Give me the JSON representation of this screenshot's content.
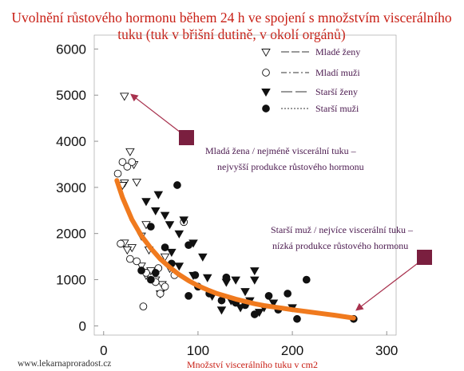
{
  "colors": {
    "title": "#c81e14",
    "xlabel": "#c81e14",
    "annotation": "#4b1a4f",
    "marker_box": "#7a1f3f",
    "arrow": "#a8324e",
    "fit": "#f07a1e",
    "points": "#111111"
  },
  "footer": "www.lekarnaproradost.cz",
  "chart_data": {
    "type": "scatter",
    "title_line1": "Uvolnění růstového hormonu během 24 h ve spojení s množstvím viscerálního",
    "title_line2": "tuku (tuk v břišní dutině, v okolí orgánů)",
    "xlabel": "Množství viscerálního tuku  v  cm2",
    "ylabel": "",
    "xlim": [
      -10,
      310
    ],
    "ylim": [
      -200,
      6300
    ],
    "x_ticks": [
      0,
      100,
      200,
      300
    ],
    "y_ticks": [
      0,
      1000,
      2000,
      3000,
      4000,
      5000,
      6000
    ],
    "grid": false,
    "legend_position": "top-right",
    "series": [
      {
        "name": "Mladé ženy",
        "marker": "triangle-open",
        "line": "dash",
        "points": [
          [
            22,
            4980
          ],
          [
            28,
            3780
          ],
          [
            32,
            3500
          ],
          [
            22,
            3100
          ],
          [
            20,
            3050
          ],
          [
            35,
            3120
          ],
          [
            45,
            2200
          ],
          [
            40,
            1950
          ],
          [
            30,
            1700
          ],
          [
            48,
            1650
          ],
          [
            22,
            1800
          ],
          [
            25,
            1650
          ],
          [
            40,
            1300
          ],
          [
            50,
            1200
          ],
          [
            55,
            1000
          ],
          [
            62,
            900
          ],
          [
            65,
            1500
          ],
          [
            70,
            1250
          ],
          [
            45,
            1100
          ],
          [
            60,
            700
          ]
        ]
      },
      {
        "name": "Mladí muži",
        "marker": "circle-open",
        "line": "dashdot",
        "points": [
          [
            15,
            3300
          ],
          [
            20,
            3550
          ],
          [
            25,
            3450
          ],
          [
            30,
            3550
          ],
          [
            18,
            1780
          ],
          [
            28,
            1450
          ],
          [
            35,
            1400
          ],
          [
            45,
            1150
          ],
          [
            55,
            950
          ],
          [
            58,
            1250
          ],
          [
            65,
            850
          ],
          [
            75,
            1100
          ],
          [
            85,
            2250
          ],
          [
            42,
            420
          ],
          [
            60,
            700
          ]
        ]
      },
      {
        "name": "Starší ženy",
        "marker": "triangle-filled",
        "line": "long-dash",
        "points": [
          [
            45,
            2700
          ],
          [
            58,
            2850
          ],
          [
            55,
            2500
          ],
          [
            65,
            2400
          ],
          [
            70,
            2200
          ],
          [
            80,
            2000
          ],
          [
            85,
            2300
          ],
          [
            72,
            1600
          ],
          [
            80,
            1300
          ],
          [
            95,
            1100
          ],
          [
            110,
            1050
          ],
          [
            130,
            950
          ],
          [
            140,
            1000
          ],
          [
            150,
            750
          ],
          [
            160,
            1000
          ],
          [
            155,
            550
          ],
          [
            170,
            400
          ],
          [
            180,
            500
          ],
          [
            200,
            400
          ],
          [
            125,
            350
          ],
          [
            135,
            550
          ],
          [
            95,
            1800
          ],
          [
            105,
            1500
          ],
          [
            115,
            650
          ],
          [
            145,
            400
          ],
          [
            165,
            300
          ],
          [
            160,
            1200
          ]
        ]
      },
      {
        "name": "Starší muži",
        "marker": "circle-filled",
        "line": "dotted",
        "points": [
          [
            78,
            3050
          ],
          [
            50,
            2150
          ],
          [
            65,
            1700
          ],
          [
            72,
            1350
          ],
          [
            40,
            1200
          ],
          [
            55,
            1150
          ],
          [
            90,
            1750
          ],
          [
            97,
            1100
          ],
          [
            100,
            850
          ],
          [
            112,
            700
          ],
          [
            125,
            550
          ],
          [
            130,
            1050
          ],
          [
            150,
            450
          ],
          [
            160,
            250
          ],
          [
            175,
            650
          ],
          [
            185,
            350
          ],
          [
            195,
            700
          ],
          [
            205,
            150
          ],
          [
            215,
            1000
          ],
          [
            265,
            150
          ],
          [
            50,
            1000
          ],
          [
            90,
            650
          ],
          [
            140,
            500
          ]
        ]
      }
    ],
    "fit_curve": {
      "x": [
        14,
        20,
        30,
        40,
        50,
        60,
        70,
        80,
        90,
        100,
        110,
        120,
        130,
        140,
        150,
        160,
        170,
        180,
        190,
        200,
        215,
        230,
        245,
        265
      ],
      "y": [
        3150,
        2780,
        2300,
        1950,
        1680,
        1450,
        1270,
        1110,
        980,
        870,
        780,
        700,
        640,
        580,
        530,
        480,
        440,
        410,
        380,
        350,
        310,
        270,
        230,
        170
      ]
    },
    "annotations": [
      {
        "line1": "Mladá žena / nejméně viscerální tuku –",
        "line2": "nejvyšší produkce růstového hormonu"
      },
      {
        "line1": "Starší muž / nejvíce viscerální tuku –",
        "line2": "nízká produkce růstového hormonu"
      }
    ]
  }
}
